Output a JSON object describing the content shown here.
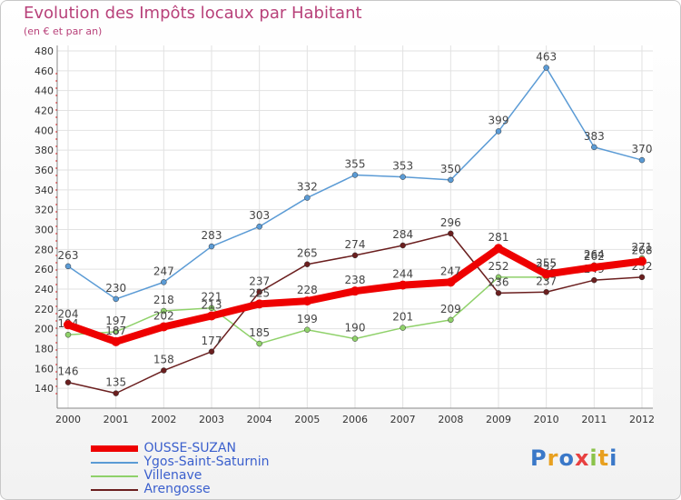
{
  "title": "Evolution des Impôts locaux par Habitant",
  "subtitle": "(en € et par an)",
  "brand": {
    "text": "Proxiti",
    "colors": [
      "#3a78c8",
      "#e8a020",
      "#3a78c8",
      "#e84040",
      "#8bc34a",
      "#e8a020",
      "#3a78c8"
    ]
  },
  "chart_data": {
    "type": "line",
    "title": "Evolution des Impôts locaux par Habitant",
    "subtitle": "(en € et par an)",
    "xlabel": "",
    "ylabel": "",
    "x": [
      "2000",
      "2001",
      "2002",
      "2003",
      "2004",
      "2005",
      "2006",
      "2007",
      "2008",
      "2009",
      "2010",
      "2011",
      "2012"
    ],
    "y_ticks": [
      "140",
      "160",
      "180",
      "200",
      "220",
      "240",
      "260",
      "280",
      "300",
      "320",
      "340",
      "360",
      "380",
      "400",
      "420",
      "440",
      "460",
      "480"
    ],
    "ylim": [
      120,
      480
    ],
    "grid": true,
    "legend_position": "bottom-left",
    "series": [
      {
        "name": "Ygos-Saint-Saturnin",
        "color": "#5b9bd5",
        "values": [
          263,
          230,
          247,
          283,
          303,
          332,
          355,
          353,
          350,
          399,
          463,
          383,
          370
        ],
        "labels": [
          "263",
          "230",
          "247",
          "283",
          "303",
          "332",
          "355",
          "353",
          "350",
          "399",
          "463",
          "383",
          "370"
        ]
      },
      {
        "name": "Villenave",
        "color": "#8fd16a",
        "values": [
          194,
          197,
          218,
          221,
          185,
          199,
          190,
          201,
          209,
          252,
          252,
          264,
          271
        ],
        "labels": [
          "194",
          "197",
          "218",
          "221",
          "185",
          "199",
          "190",
          "201",
          "209",
          "252",
          "252",
          "264",
          "271"
        ]
      },
      {
        "name": "Arengosse",
        "color": "#6b1f1f",
        "values": [
          146,
          135,
          158,
          177,
          237,
          265,
          274,
          284,
          296,
          236,
          237,
          249,
          252
        ],
        "labels": [
          "146",
          "135",
          "158",
          "177",
          "237",
          "265",
          "274",
          "284",
          "296",
          "236",
          "237",
          "249",
          "252"
        ]
      },
      {
        "name": "OUSSE-SUZAN",
        "color": "#ee0000",
        "values": [
          204,
          187,
          202,
          213,
          225,
          228,
          238,
          244,
          247,
          281,
          255,
          262,
          268
        ],
        "labels": [
          "204",
          "187",
          "202",
          "213",
          "225",
          "228",
          "238",
          "244",
          "247",
          "281",
          "255",
          "262",
          "268"
        ]
      }
    ]
  },
  "legend": {
    "items": [
      {
        "label": "OUSSE-SUZAN",
        "color": "#ee0000"
      },
      {
        "label": "Ygos-Saint-Saturnin",
        "color": "#5b9bd5"
      },
      {
        "label": "Villenave",
        "color": "#8fd16a"
      },
      {
        "label": "Arengosse",
        "color": "#6b1f1f"
      }
    ]
  }
}
